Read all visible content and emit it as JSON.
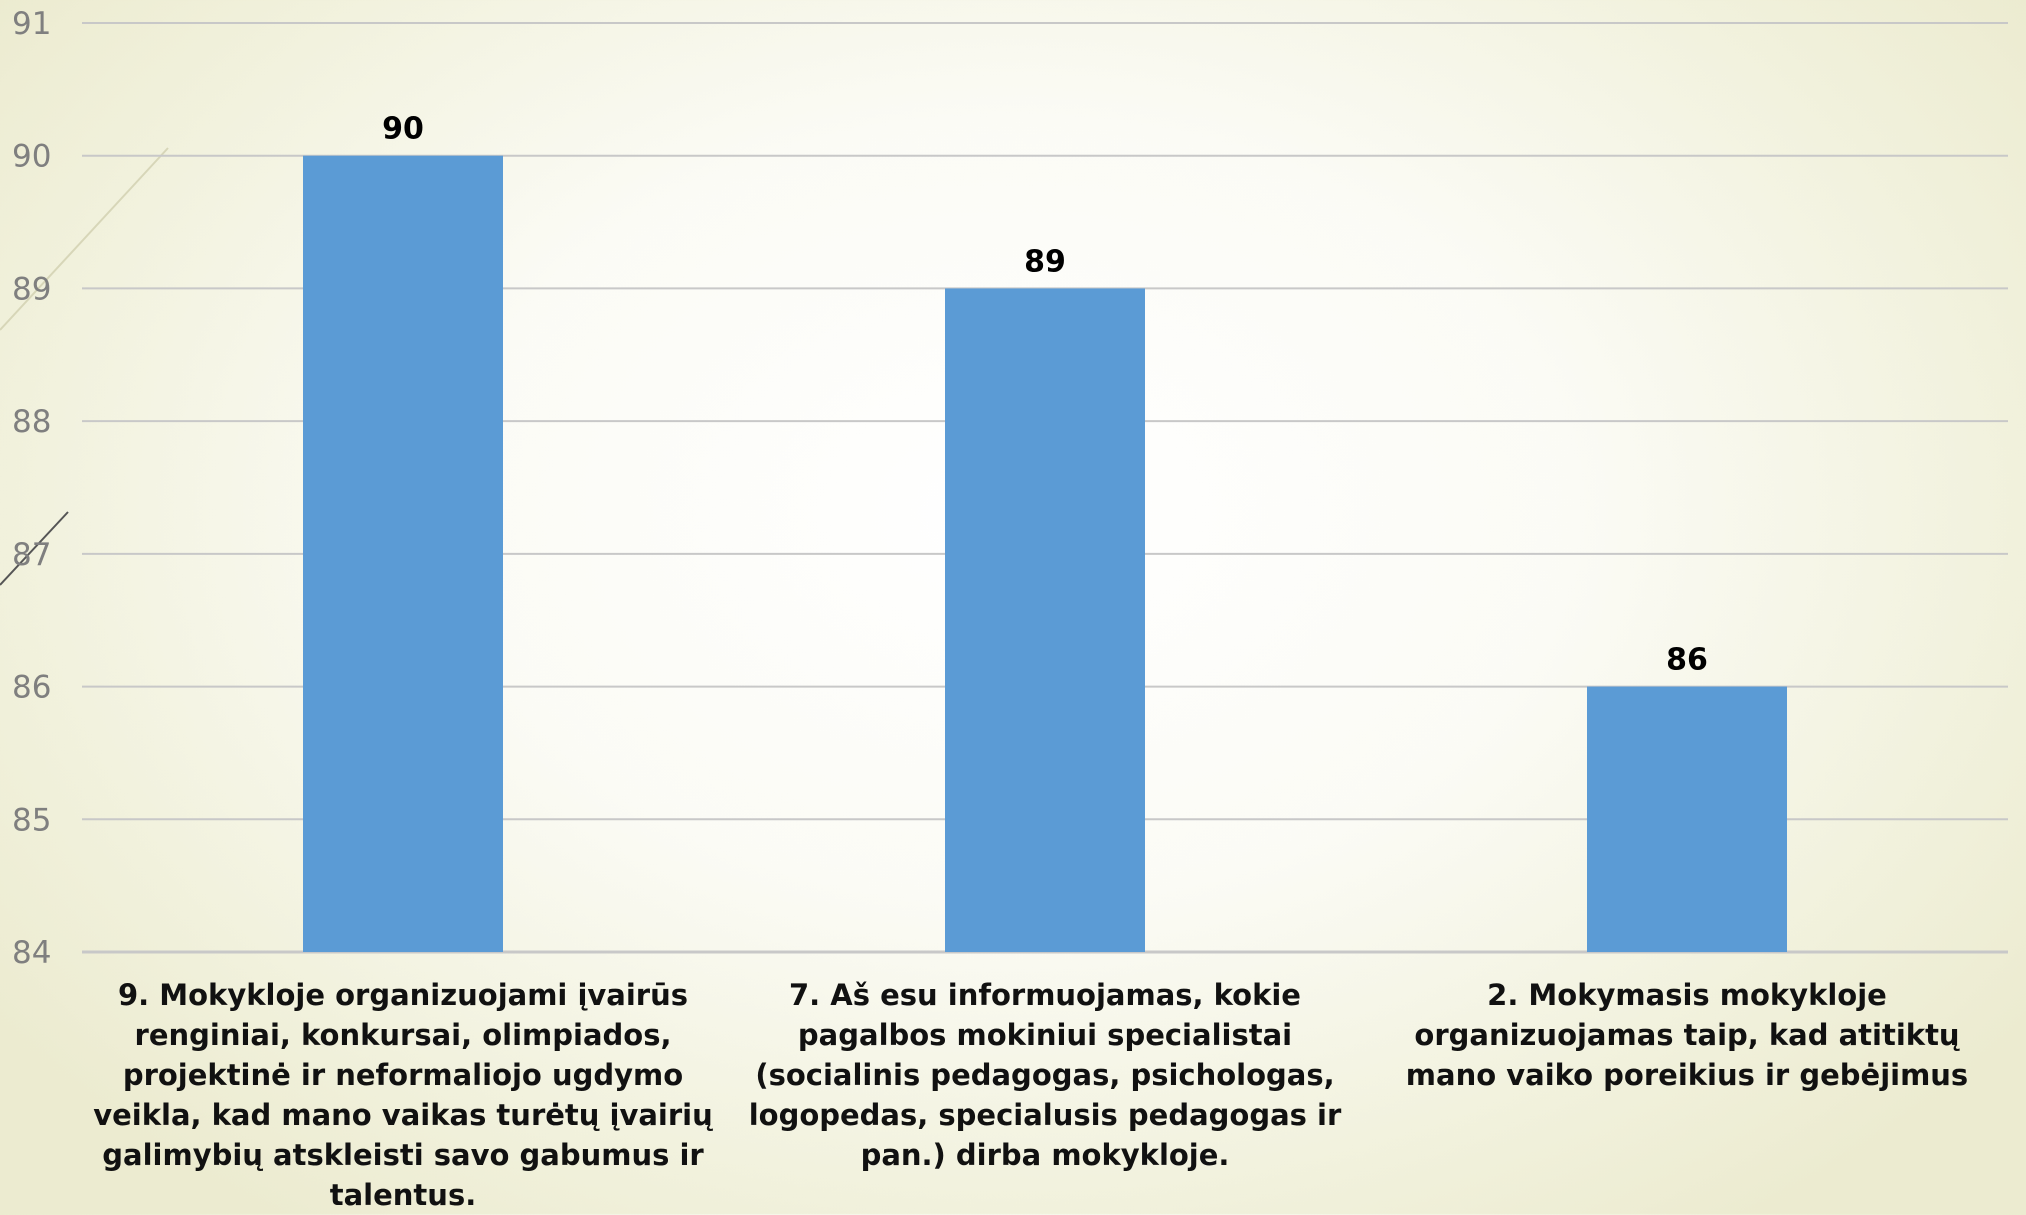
{
  "chart_data": {
    "type": "bar",
    "categories": [
      "9. Mokykloje organizuojami įvairūs renginiai, konkursai, olimpiados, projektinė ir neformaliojo ugdymo veikla, kad mano vaikas turėtų įvairių galimybių atskleisti savo gabumus ir talentus.",
      "7. Aš esu informuojamas, kokie pagalbos mokiniui specialistai (socialinis pedagogas, psichologas, logopedas, specialusis pedagogas ir pan.) dirba mokykloje.",
      "2. Mokymasis mokykloje organizuojamas taip, kad atitiktų mano vaiko poreikius ir gebėjimus"
    ],
    "values": [
      90,
      89,
      86
    ],
    "data_labels": [
      "90",
      "89",
      "86"
    ],
    "ylim": [
      84,
      91
    ],
    "yticks": [
      "84",
      "85",
      "86",
      "87",
      "88",
      "89",
      "90",
      "91"
    ],
    "grid": true,
    "legend": "none",
    "bar_color": "#5b9bd5",
    "title": "",
    "xlabel": "",
    "ylabel": ""
  }
}
